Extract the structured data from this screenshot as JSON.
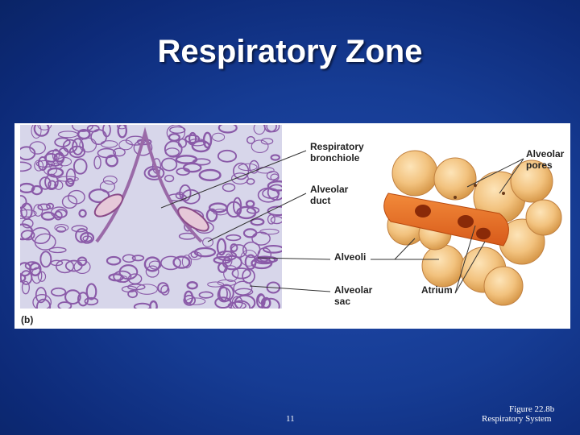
{
  "slide": {
    "title": "Respiratory Zone",
    "figure": {
      "panel_label": "(b)",
      "labels": {
        "respiratory_bronchiole": [
          "Respiratory",
          "bronchiole"
        ],
        "alveolar_duct": [
          "Alveolar",
          "duct"
        ],
        "alveoli": [
          "Alveoli"
        ],
        "alveolar_sac": [
          "Alveolar",
          "sac"
        ],
        "alveolar_pores": [
          "Alveolar",
          "pores"
        ],
        "atrium": [
          "Atrium"
        ]
      }
    },
    "footer": {
      "page_number": "11",
      "figure_ref": "Figure 22.8b",
      "section": "Respiratory System"
    }
  }
}
